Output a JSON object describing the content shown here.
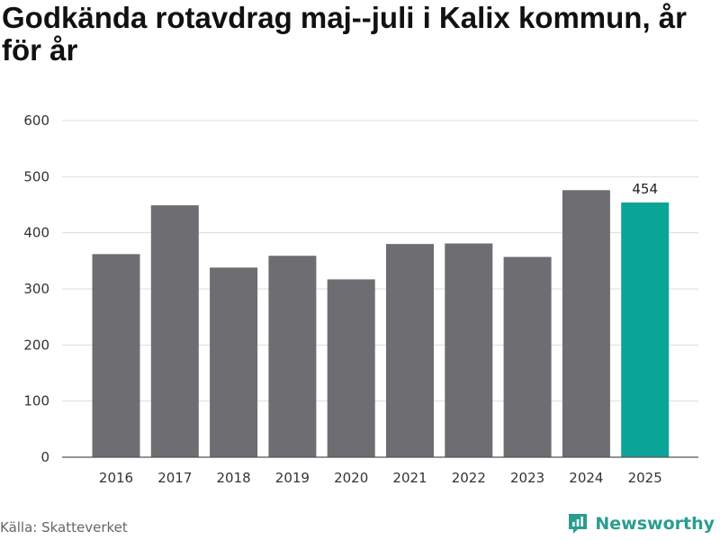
{
  "title": "Godkända rotavdrag maj--juli i Kalix kommun, år för år",
  "source": "Källa: Skatteverket",
  "brand": {
    "name": "Newsworthy",
    "icon": "bar-chart-pin-icon",
    "color": "#2a9d8f"
  },
  "colors": {
    "bar": "#6d6d72",
    "highlight": "#0aa596",
    "grid": "#dddddd",
    "axis": "#555555"
  },
  "chart_data": {
    "type": "bar",
    "categories": [
      "2016",
      "2017",
      "2018",
      "2019",
      "2020",
      "2021",
      "2022",
      "2023",
      "2024",
      "2025"
    ],
    "values": [
      362,
      449,
      338,
      359,
      317,
      380,
      381,
      357,
      476,
      454
    ],
    "highlight_index": 9,
    "data_labels": [
      {
        "index": 9,
        "text": "454"
      }
    ],
    "yticks": [
      0,
      100,
      200,
      300,
      400,
      500,
      600
    ],
    "ylim": [
      0,
      600
    ],
    "grid": true,
    "title": "Godkända rotavdrag maj--juli i Kalix kommun, år för år",
    "xlabel": "",
    "ylabel": ""
  }
}
